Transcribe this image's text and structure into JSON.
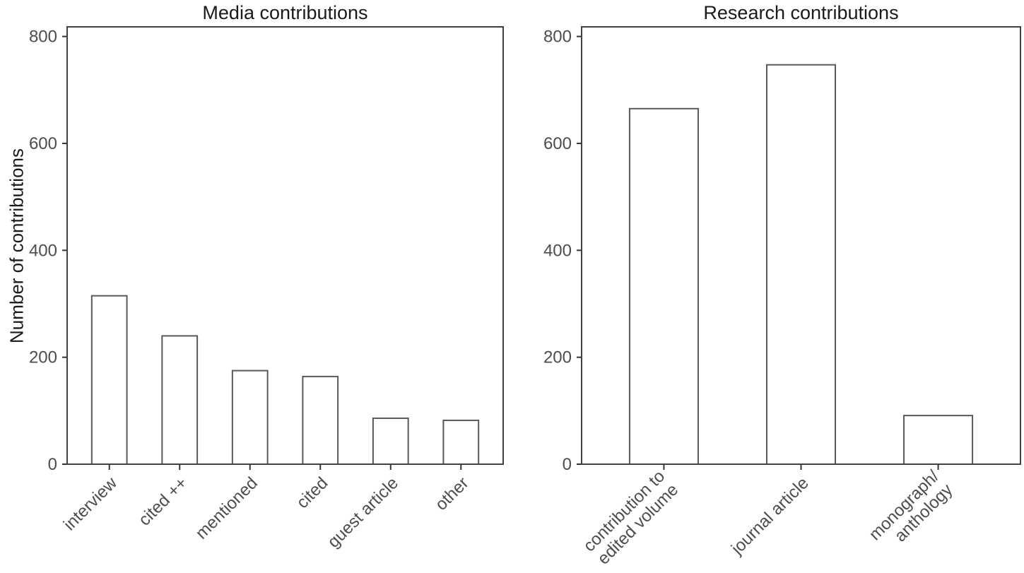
{
  "figure": {
    "background": "#ffffff",
    "colors": {
      "panel_border": "#404040",
      "axis_tick": "#333333",
      "bar_fill": "#ffffff",
      "bar_stroke": "#595959",
      "tick_text": "#4d4d4d",
      "title_text": "#1a1a1a"
    }
  },
  "chart_data": [
    {
      "type": "bar",
      "title": "Media contributions",
      "ylabel": "Number of contributions",
      "xlabel": "",
      "categories": [
        "interview",
        "cited ++",
        "mentioned",
        "cited",
        "guest article",
        "other"
      ],
      "values": [
        315,
        240,
        175,
        164,
        86,
        82
      ],
      "yticks": [
        0,
        200,
        400,
        600,
        800
      ],
      "ylim": [
        0,
        818
      ],
      "grid": false,
      "legend": "none",
      "x_label_angle": 45
    },
    {
      "type": "bar",
      "title": "Research contributions",
      "ylabel": "Number of contributions",
      "xlabel": "",
      "categories": [
        "contribution to\nedited volume",
        "journal article",
        "monograph/\nanthology"
      ],
      "values": [
        665,
        747,
        91
      ],
      "yticks": [
        0,
        200,
        400,
        600,
        800
      ],
      "ylim": [
        0,
        818
      ],
      "grid": false,
      "legend": "none",
      "x_label_angle": 45
    }
  ]
}
